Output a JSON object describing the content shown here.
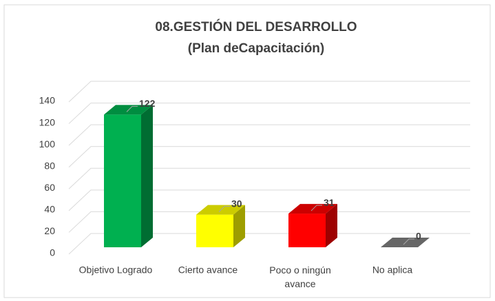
{
  "chart_data": {
    "type": "bar3d",
    "title": "08.GESTIÓN DEL DESARROLLO",
    "subtitle": "(Plan deCapacitación)",
    "categories": [
      "Objetivo Logrado",
      "Cierto avance",
      "Poco o ningún avance",
      "No aplica"
    ],
    "values": [
      122,
      30,
      31,
      0
    ],
    "colors": [
      "#00b050",
      "#ffff00",
      "#ff0000",
      "#7f7f7f"
    ],
    "ylim": [
      0,
      140
    ],
    "yticks": [
      0,
      20,
      40,
      60,
      80,
      100,
      120,
      140
    ],
    "grid": true
  }
}
